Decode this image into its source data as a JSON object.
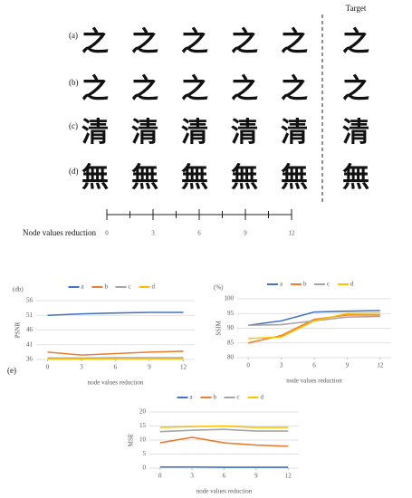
{
  "figure": {
    "target_label": "Target",
    "rows": [
      {
        "label": "(a)",
        "chars": [
          "之",
          "之",
          "之",
          "之",
          "之"
        ],
        "target": "之"
      },
      {
        "label": "(b)",
        "chars": [
          "之",
          "之",
          "之",
          "之",
          "之"
        ],
        "target": "之"
      },
      {
        "label": "(c)",
        "chars": [
          "清",
          "清",
          "清",
          "清",
          "清"
        ],
        "target": "清"
      },
      {
        "label": "(d)",
        "chars": [
          "無",
          "無",
          "無",
          "無",
          "無"
        ],
        "target": "無"
      }
    ],
    "scale": {
      "label": "Node values reduction",
      "ticks": [
        0,
        3,
        6,
        9,
        12
      ]
    },
    "panel_label": "(e)"
  },
  "chart_data": [
    {
      "type": "line",
      "unit_label": "(db)",
      "y_label": "PSNR",
      "x_label": "node values reduction",
      "x": [
        0,
        3,
        6,
        9,
        12
      ],
      "xlim": [
        -1,
        13
      ],
      "xticks": [
        0,
        3,
        6,
        9,
        12
      ],
      "ylim": [
        36,
        56
      ],
      "yticks": [
        36,
        41,
        46,
        51,
        56
      ],
      "grid": true,
      "legend": "top",
      "series": [
        {
          "name": "a",
          "color": "#4472c4",
          "values": [
            51,
            51.5,
            51.8,
            52,
            52
          ]
        },
        {
          "name": "b",
          "color": "#ed7d31",
          "values": [
            38.5,
            37.5,
            38,
            38.5,
            38.8
          ]
        },
        {
          "name": "c",
          "color": "#a5a5a5",
          "values": [
            36.5,
            36.5,
            36.6,
            36.6,
            36.6
          ]
        },
        {
          "name": "d",
          "color": "#ffc000",
          "values": [
            36.2,
            36.2,
            36.3,
            36.3,
            36.3
          ]
        }
      ]
    },
    {
      "type": "line",
      "unit_label": "(%)",
      "y_label": "SSIM",
      "x_label": "node values reduction",
      "x": [
        0,
        3,
        6,
        9,
        12
      ],
      "xlim": [
        -1,
        13
      ],
      "xticks": [
        0,
        3,
        6,
        9,
        12
      ],
      "ylim": [
        80,
        100
      ],
      "yticks": [
        80,
        85,
        90,
        95,
        100
      ],
      "grid": true,
      "legend": "top",
      "series": [
        {
          "name": "a",
          "color": "#4472c4",
          "values": [
            91,
            92.5,
            95.5,
            95.8,
            96
          ]
        },
        {
          "name": "b",
          "color": "#ed7d31",
          "values": [
            85,
            87.5,
            93,
            94.5,
            94.5
          ]
        },
        {
          "name": "c",
          "color": "#a5a5a5",
          "values": [
            91,
            91.2,
            92.5,
            93.8,
            94
          ]
        },
        {
          "name": "d",
          "color": "#ffc000",
          "values": [
            86.5,
            87,
            92.5,
            95,
            95.2
          ]
        }
      ]
    },
    {
      "type": "line",
      "y_label": "MSE",
      "x_label": "node values reduction",
      "x": [
        0,
        3,
        6,
        9,
        12
      ],
      "xlim": [
        -1,
        13
      ],
      "xticks": [
        0,
        3,
        6,
        9,
        12
      ],
      "ylim": [
        0,
        20
      ],
      "yticks": [
        0,
        5,
        10,
        15,
        20
      ],
      "grid": true,
      "legend": "top",
      "series": [
        {
          "name": "a",
          "color": "#4472c4",
          "values": [
            0.4,
            0.4,
            0.3,
            0.3,
            0.3
          ]
        },
        {
          "name": "b",
          "color": "#ed7d31",
          "values": [
            9,
            11,
            9,
            8.2,
            7.8
          ]
        },
        {
          "name": "c",
          "color": "#a5a5a5",
          "values": [
            13,
            13.5,
            13.8,
            13.2,
            13.2
          ]
        },
        {
          "name": "d",
          "color": "#ffc000",
          "values": [
            14.5,
            14.8,
            15,
            14.5,
            14.5
          ]
        }
      ]
    }
  ]
}
